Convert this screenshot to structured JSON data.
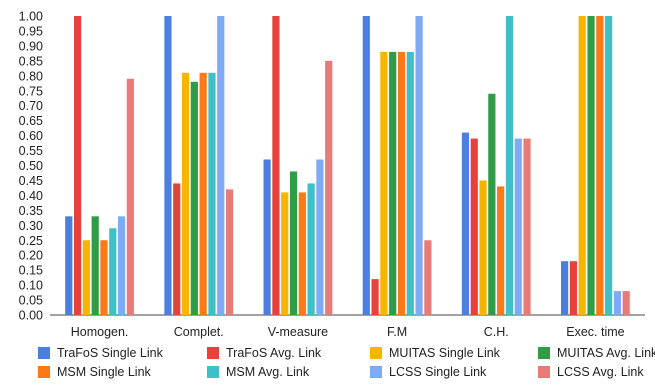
{
  "chart_data": {
    "type": "bar",
    "categories": [
      "Homogen.",
      "Complet.",
      "V-measure",
      "F.M",
      "C.H.",
      "Exec. time"
    ],
    "ylim": [
      0,
      1
    ],
    "yticks": [
      0.0,
      0.05,
      0.1,
      0.15,
      0.2,
      0.25,
      0.3,
      0.35,
      0.4,
      0.45,
      0.5,
      0.55,
      0.6,
      0.65,
      0.7,
      0.75,
      0.8,
      0.85,
      0.9,
      0.95,
      1.0
    ],
    "ytick_labels": [
      "0.00",
      "0.05",
      "0.10",
      "0.15",
      "0.20",
      "0.25",
      "0.30",
      "0.35",
      "0.40",
      "0.45",
      "0.50",
      "0.55",
      "0.60",
      "0.65",
      "0.70",
      "0.75",
      "0.80",
      "0.85",
      "0.90",
      "0.95",
      "1.00"
    ],
    "legend_position": "bottom",
    "grid": false,
    "series": [
      {
        "name": "TraFoS Single Link",
        "color": "#4a7fe0",
        "values": [
          0.33,
          1.0,
          0.52,
          1.0,
          0.61,
          0.18
        ]
      },
      {
        "name": "TraFoS Avg. Link",
        "color": "#e8413b",
        "values": [
          1.0,
          0.44,
          1.0,
          0.12,
          0.59,
          0.18
        ]
      },
      {
        "name": "MUITAS Single Link",
        "color": "#f7b500",
        "values": [
          0.25,
          0.81,
          0.41,
          0.88,
          0.45,
          1.0
        ]
      },
      {
        "name": "MUITAS Avg. Link",
        "color": "#2f9c47",
        "values": [
          0.33,
          0.78,
          0.48,
          0.88,
          0.74,
          1.0
        ]
      },
      {
        "name": "MSM Single Link",
        "color": "#fb7a17",
        "values": [
          0.25,
          0.81,
          0.41,
          0.88,
          0.43,
          1.0
        ]
      },
      {
        "name": "MSM Avg. Link",
        "color": "#3fbfc6",
        "values": [
          0.29,
          0.81,
          0.44,
          0.88,
          1.0,
          1.0
        ]
      },
      {
        "name": "LCSS Single Link",
        "color": "#7faaf5",
        "values": [
          0.33,
          1.0,
          0.52,
          1.0,
          0.59,
          0.08
        ]
      },
      {
        "name": "LCSS Avg. Link",
        "color": "#e87b78",
        "values": [
          0.79,
          0.42,
          0.85,
          0.25,
          0.59,
          0.08
        ]
      }
    ]
  }
}
